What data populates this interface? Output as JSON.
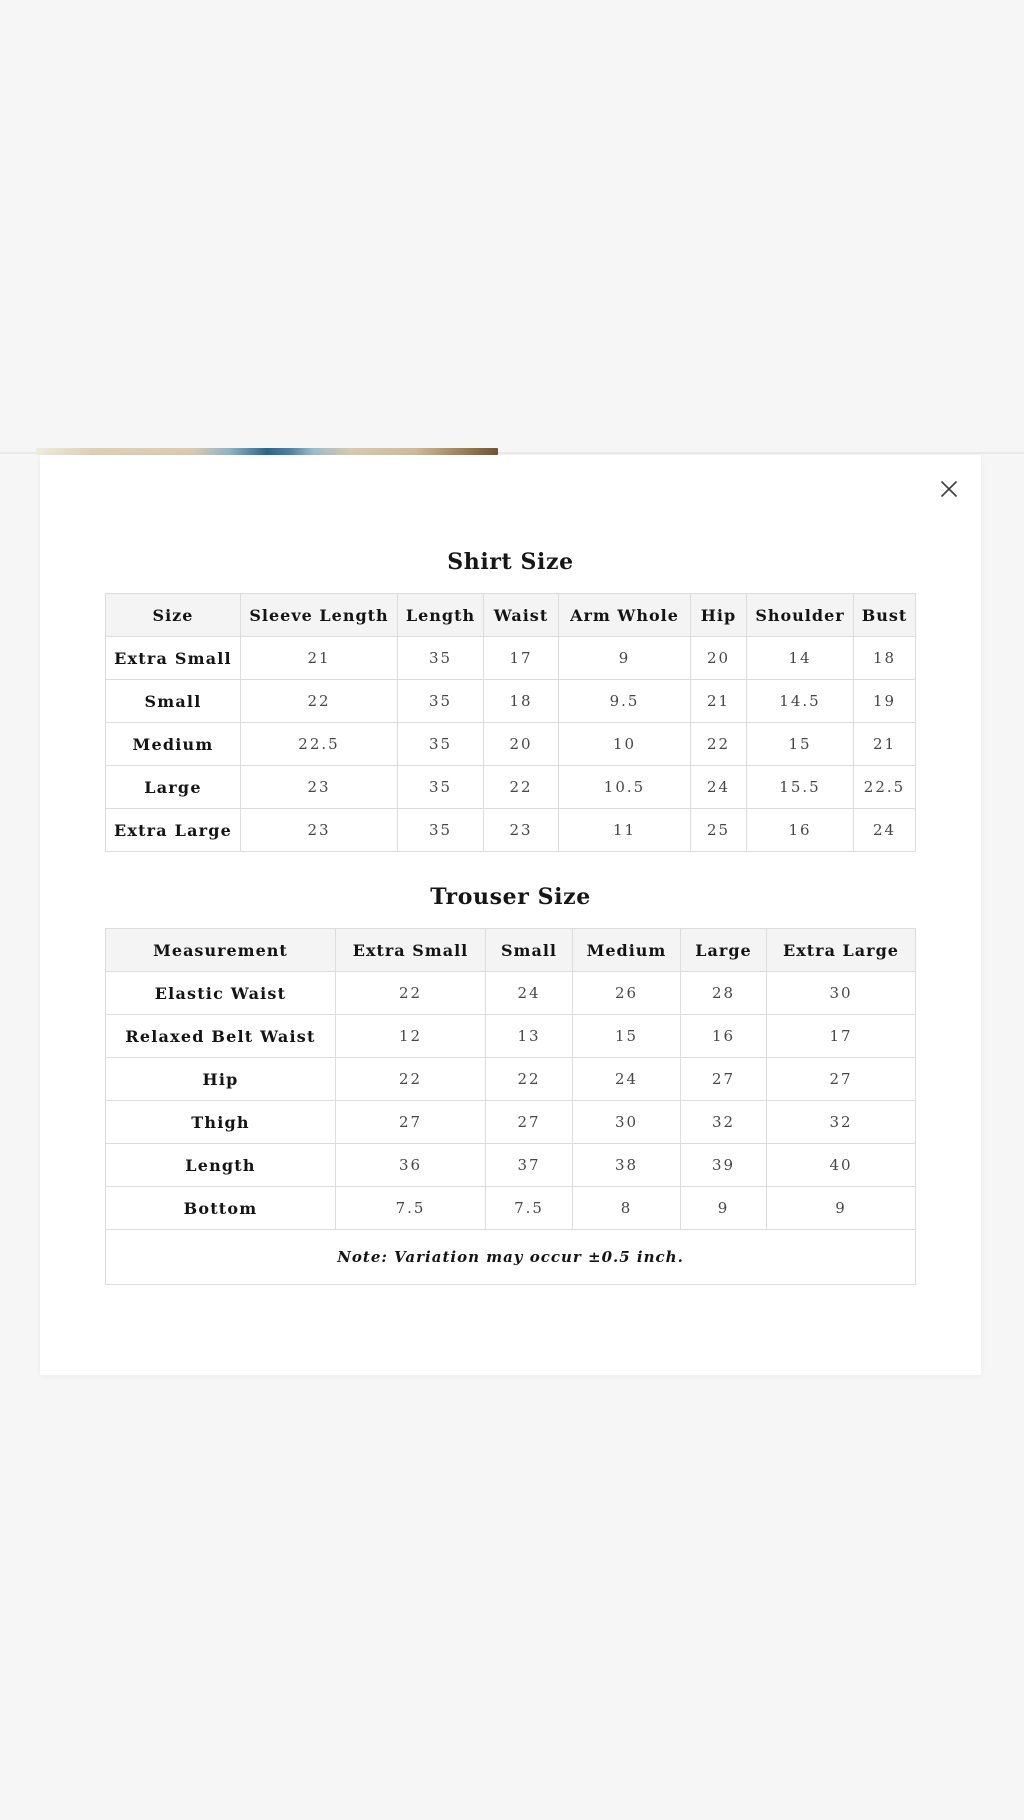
{
  "modal": {
    "close_icon": "✕"
  },
  "shirt": {
    "title": "Shirt Size",
    "columns": [
      "Size",
      "Sleeve Length",
      "Length",
      "Waist",
      "Arm Whole",
      "Hip",
      "Shoulder",
      "Bust"
    ],
    "rows": [
      {
        "label": "Extra Small",
        "values": [
          "21",
          "35",
          "17",
          "9",
          "20",
          "14",
          "18"
        ]
      },
      {
        "label": "Small",
        "values": [
          "22",
          "35",
          "18",
          "9.5",
          "21",
          "14.5",
          "19"
        ]
      },
      {
        "label": "Medium",
        "values": [
          "22.5",
          "35",
          "20",
          "10",
          "22",
          "15",
          "21"
        ]
      },
      {
        "label": "Large",
        "values": [
          "23",
          "35",
          "22",
          "10.5",
          "24",
          "15.5",
          "22.5"
        ]
      },
      {
        "label": "Extra Large",
        "values": [
          "23",
          "35",
          "23",
          "11",
          "25",
          "16",
          "24"
        ]
      }
    ]
  },
  "trouser": {
    "title": "Trouser Size",
    "columns": [
      "Measurement",
      "Extra Small",
      "Small",
      "Medium",
      "Large",
      "Extra Large"
    ],
    "rows": [
      {
        "label": "Elastic Waist",
        "values": [
          "22",
          "24",
          "26",
          "28",
          "30"
        ]
      },
      {
        "label": "Relaxed Belt Waist",
        "values": [
          "12",
          "13",
          "15",
          "16",
          "17"
        ]
      },
      {
        "label": "Hip",
        "values": [
          "22",
          "22",
          "24",
          "27",
          "27"
        ]
      },
      {
        "label": "Thigh",
        "values": [
          "27",
          "27",
          "30",
          "32",
          "32"
        ]
      },
      {
        "label": "Length",
        "values": [
          "36",
          "37",
          "38",
          "39",
          "40"
        ]
      },
      {
        "label": "Bottom",
        "values": [
          "7.5",
          "7.5",
          "8",
          "9",
          "9"
        ]
      }
    ],
    "note": "Note: Variation may occur ±0.5 inch."
  },
  "colors": {
    "page_bg": "#f6f6f6",
    "modal_bg": "#ffffff",
    "table_header_bg": "#f4f4f4",
    "table_border": "#dcdcdc",
    "text_dark": "#141414",
    "text_body": "#474747"
  }
}
